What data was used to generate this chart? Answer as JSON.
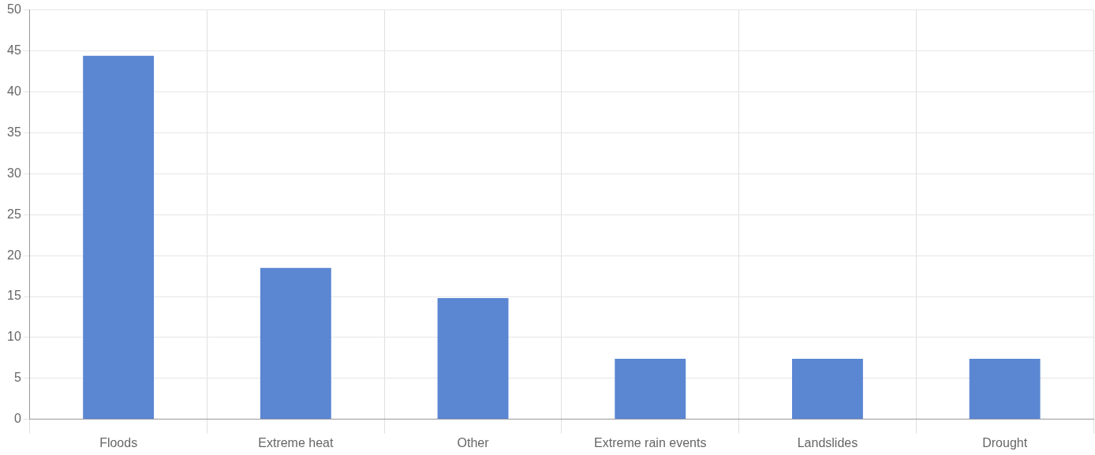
{
  "chart_data": {
    "type": "bar",
    "categories": [
      "Floods",
      "Extreme heat",
      "Other",
      "Extreme rain events",
      "Landslides",
      "Drought"
    ],
    "values": [
      44.4,
      18.5,
      14.8,
      7.4,
      7.4,
      7.4
    ],
    "color": "#5b86d2",
    "ylim": [
      0,
      50
    ],
    "yticks": [
      0,
      5,
      10,
      15,
      20,
      25,
      30,
      35,
      40,
      45,
      50
    ],
    "grid": true,
    "legend": false
  }
}
